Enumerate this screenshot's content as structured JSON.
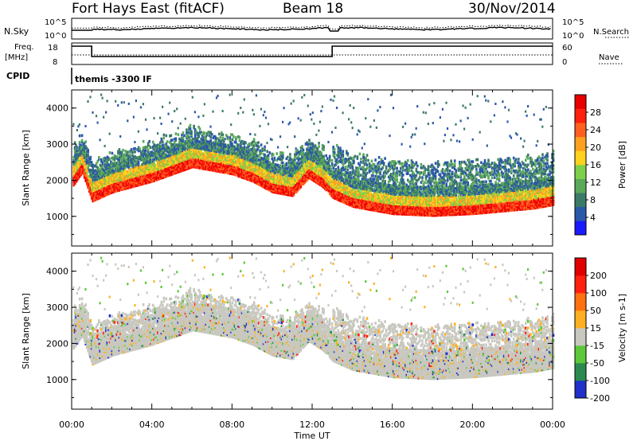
{
  "header": {
    "station": "Fort Hays East (fitACF)",
    "beam": "Beam 18",
    "date": "30/Nov/2014"
  },
  "top_panels": {
    "nsky_label": "N.Sky",
    "nsearch_label": "N.Search",
    "freq_label_line1": "Freq.",
    "freq_label_line2": "[MHz]",
    "nave_label": "Nave",
    "cpid_label": "CPID",
    "cpid_value": "themis -3300 IF",
    "noise_ticks_left": [
      "10^5",
      "10^0"
    ],
    "noise_ticks_right": [
      "10^5",
      "10^0"
    ],
    "freq_ticks_left": [
      "18",
      "8"
    ],
    "freq_ticks_right": [
      "60",
      "0"
    ]
  },
  "chart_data": [
    {
      "type": "heatmap",
      "name": "power",
      "xlabel": "Time UT",
      "ylabel": "Slant Range [km]",
      "x_ticks": [
        "00:00",
        "04:00",
        "08:00",
        "12:00",
        "16:00",
        "20:00",
        "00:00"
      ],
      "xlim_hours": [
        0,
        24
      ],
      "ylim": [
        180,
        4500
      ],
      "y_ticks": [
        1000,
        2000,
        3000,
        4000
      ],
      "colorbar_label": "Power [dB]",
      "colorbar_ticks": [
        "4",
        "8",
        "12",
        "16",
        "20",
        "24",
        "28"
      ],
      "colors": [
        "#1a1aff",
        "#2b58a8",
        "#3c7a68",
        "#5aa85a",
        "#7ed04a",
        "#ffd21e",
        "#ffa020",
        "#ff6020",
        "#ff2010",
        "#e80000"
      ],
      "ridge_km": [
        [
          0.0,
          1900
        ],
        [
          0.5,
          2300
        ],
        [
          1.0,
          1500
        ],
        [
          2.0,
          1750
        ],
        [
          3.0,
          1900
        ],
        [
          4.0,
          2050
        ],
        [
          5.0,
          2250
        ],
        [
          6.0,
          2450
        ],
        [
          7.0,
          2350
        ],
        [
          8.0,
          2250
        ],
        [
          9.0,
          2050
        ],
        [
          10.0,
          1750
        ],
        [
          11.0,
          1650
        ],
        [
          11.8,
          2150
        ],
        [
          12.5,
          1900
        ],
        [
          13.0,
          1600
        ],
        [
          14.0,
          1350
        ],
        [
          16.0,
          1150
        ],
        [
          18.0,
          1100
        ],
        [
          20.0,
          1150
        ],
        [
          22.0,
          1250
        ],
        [
          23.0,
          1300
        ],
        [
          24.0,
          1400
        ]
      ]
    },
    {
      "type": "heatmap",
      "name": "velocity",
      "xlabel": "Time UT",
      "ylabel": "Slant Range [km]",
      "x_ticks": [
        "00:00",
        "04:00",
        "08:00",
        "12:00",
        "16:00",
        "20:00",
        "00:00"
      ],
      "xlim_hours": [
        0,
        24
      ],
      "ylim": [
        180,
        4500
      ],
      "y_ticks": [
        1000,
        2000,
        3000,
        4000
      ],
      "colorbar_label": "Velocity [m s-1]",
      "colorbar_ticks": [
        "200",
        "100",
        "50",
        "15",
        "-15",
        "-50",
        "-100",
        "-200"
      ],
      "colors": [
        "#2030c8",
        "#2a8a50",
        "#5cc83a",
        "#c8c8c0",
        "#ffb020",
        "#ff7010",
        "#ff2010",
        "#e00000"
      ]
    }
  ]
}
